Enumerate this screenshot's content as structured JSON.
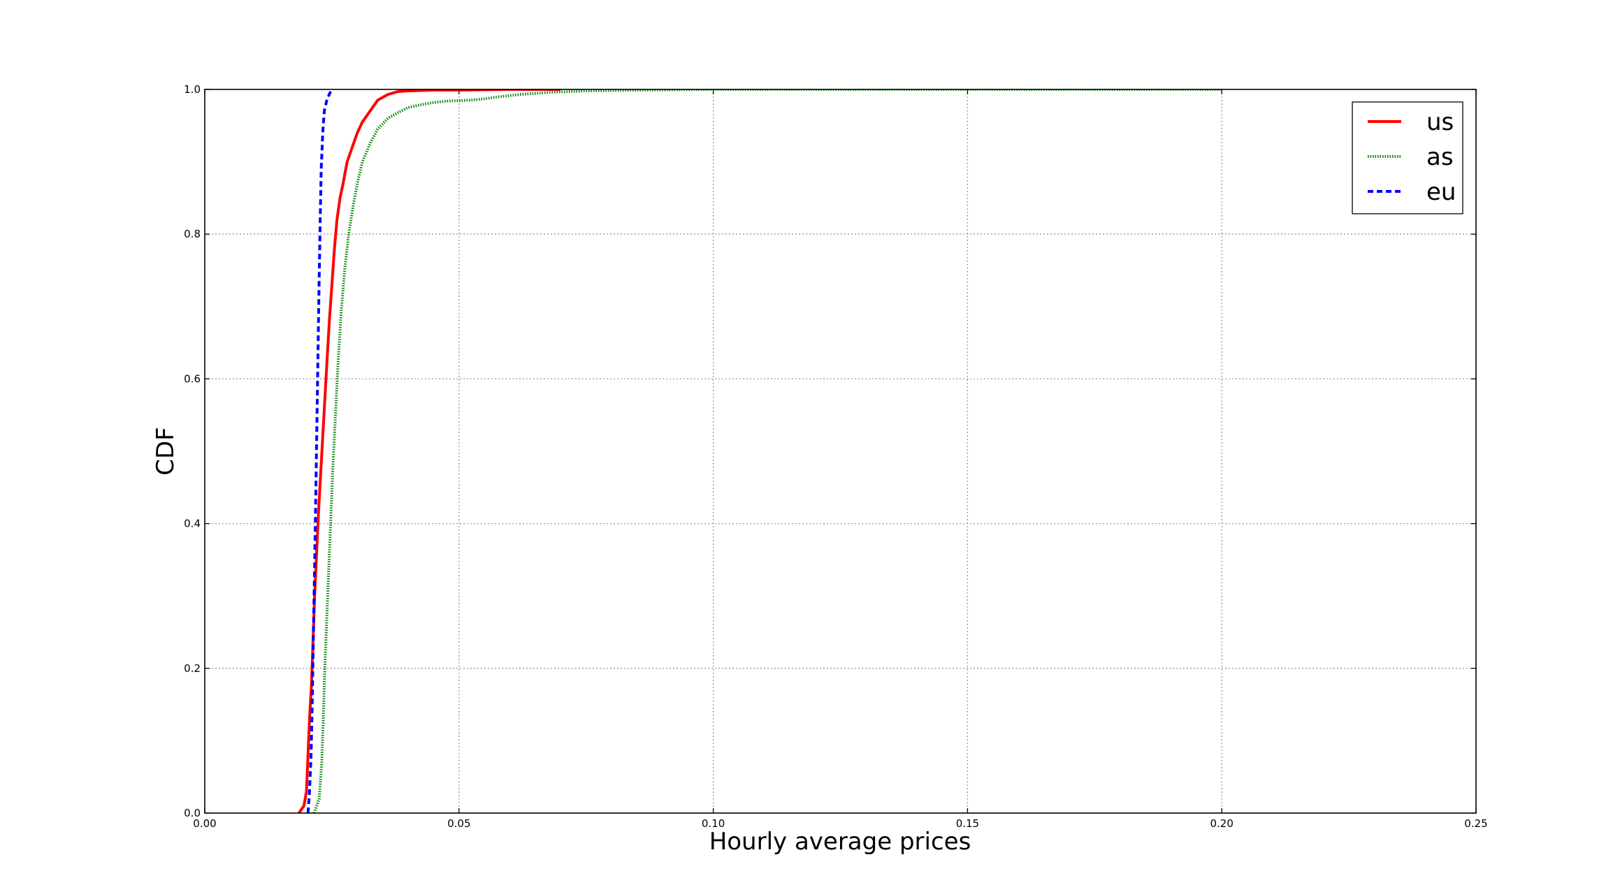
{
  "chart_data": {
    "type": "line",
    "title": "",
    "xlabel": "Hourly average prices",
    "ylabel": "CDF",
    "xlim": [
      0.0,
      0.25
    ],
    "ylim": [
      0.0,
      1.0
    ],
    "xticks": [
      0.0,
      0.05,
      0.1,
      0.15,
      0.2,
      0.25
    ],
    "xtick_labels": [
      "0.00",
      "0.05",
      "0.10",
      "0.15",
      "0.20",
      "0.25"
    ],
    "yticks": [
      0.0,
      0.2,
      0.4,
      0.6,
      0.8,
      1.0
    ],
    "ytick_labels": [
      "0.0",
      "0.2",
      "0.4",
      "0.6",
      "0.8",
      "1.0"
    ],
    "grid": true,
    "legend_position": "top-right",
    "series": [
      {
        "name": "us",
        "color": "#ff0000",
        "style": "solid",
        "x": [
          0.0185,
          0.0195,
          0.02,
          0.0203,
          0.0206,
          0.021,
          0.0213,
          0.0216,
          0.022,
          0.0224,
          0.0228,
          0.0232,
          0.0236,
          0.024,
          0.0245,
          0.025,
          0.0255,
          0.026,
          0.0266,
          0.0272,
          0.028,
          0.029,
          0.03,
          0.031,
          0.0325,
          0.034,
          0.036,
          0.038,
          0.04,
          0.045,
          0.05,
          0.06,
          0.07
        ],
        "y": [
          0.0,
          0.01,
          0.03,
          0.08,
          0.13,
          0.18,
          0.24,
          0.3,
          0.36,
          0.42,
          0.47,
          0.52,
          0.57,
          0.62,
          0.68,
          0.73,
          0.78,
          0.82,
          0.85,
          0.87,
          0.9,
          0.92,
          0.94,
          0.955,
          0.97,
          0.985,
          0.993,
          0.997,
          0.998,
          0.999,
          0.999,
          1.0,
          1.0
        ]
      },
      {
        "name": "as",
        "color": "#008000",
        "style": "dotted",
        "x": [
          0.0215,
          0.0225,
          0.023,
          0.0233,
          0.0236,
          0.024,
          0.0244,
          0.0248,
          0.0252,
          0.0257,
          0.0262,
          0.0268,
          0.0275,
          0.0283,
          0.0292,
          0.03,
          0.031,
          0.0325,
          0.034,
          0.036,
          0.038,
          0.04,
          0.042,
          0.045,
          0.048,
          0.052,
          0.055,
          0.058,
          0.062,
          0.068,
          0.075,
          0.085,
          0.1,
          0.15,
          0.2
        ],
        "y": [
          0.0,
          0.02,
          0.07,
          0.13,
          0.2,
          0.27,
          0.34,
          0.41,
          0.48,
          0.55,
          0.62,
          0.69,
          0.75,
          0.8,
          0.84,
          0.87,
          0.9,
          0.925,
          0.945,
          0.96,
          0.968,
          0.975,
          0.978,
          0.982,
          0.984,
          0.985,
          0.987,
          0.99,
          0.993,
          0.996,
          0.998,
          0.999,
          1.0,
          1.0,
          1.0
        ]
      },
      {
        "name": "eu",
        "color": "#0000ff",
        "style": "dashed",
        "x": [
          0.0203,
          0.0206,
          0.0209,
          0.0211,
          0.0213,
          0.0215,
          0.0217,
          0.0219,
          0.0221,
          0.0223,
          0.0225,
          0.0227,
          0.0229,
          0.0232,
          0.0235,
          0.024,
          0.0246,
          0.025
        ],
        "y": [
          0.0,
          0.03,
          0.08,
          0.14,
          0.22,
          0.3,
          0.38,
          0.47,
          0.56,
          0.65,
          0.74,
          0.82,
          0.89,
          0.94,
          0.97,
          0.985,
          0.995,
          1.0
        ]
      }
    ]
  }
}
